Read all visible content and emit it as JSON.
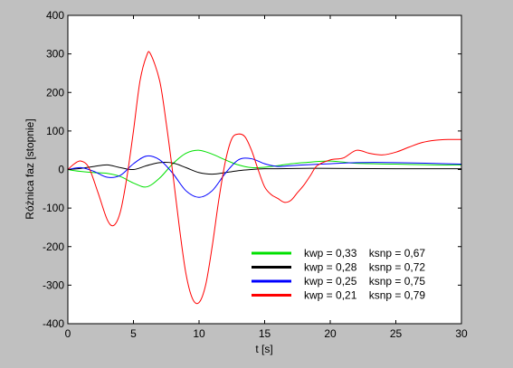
{
  "chart_data": {
    "type": "line",
    "xlabel": "t [s]",
    "ylabel": "Różnica faz [stopnie]",
    "xlim": [
      0,
      30
    ],
    "ylim": [
      -400,
      400
    ],
    "xticks": [
      0,
      5,
      10,
      15,
      20,
      25,
      30
    ],
    "yticks": [
      400,
      300,
      200,
      100,
      0,
      -100,
      -200,
      -300,
      -400
    ],
    "grid": false,
    "legend_position": "bottom-right",
    "series": [
      {
        "name": "kwp = 0,33    ksnp = 0,67",
        "color": "#00e000",
        "x": [
          0,
          0.5,
          1,
          2,
          3,
          4,
          5,
          6,
          7,
          8,
          9,
          10,
          11,
          12,
          13,
          14,
          15,
          16,
          17,
          18,
          20,
          22,
          25,
          28,
          30
        ],
        "y": [
          0,
          -3,
          -5,
          -8,
          -10,
          -18,
          -35,
          -45,
          -22,
          15,
          42,
          50,
          40,
          25,
          12,
          5,
          6,
          10,
          15,
          18,
          22,
          16,
          14,
          12,
          12
        ]
      },
      {
        "name": "kwp = 0,28    ksnp = 0,72",
        "color": "#000000",
        "x": [
          0,
          1,
          2,
          3,
          4,
          5,
          6,
          7,
          8,
          9,
          10,
          11,
          12,
          13,
          14,
          15,
          16,
          18,
          20,
          25,
          30
        ],
        "y": [
          0,
          3,
          8,
          12,
          5,
          0,
          10,
          18,
          17,
          5,
          -8,
          -12,
          -8,
          -3,
          0,
          2,
          2,
          3,
          3,
          2,
          2
        ]
      },
      {
        "name": "kwp = 0,25    ksnp = 0,75",
        "color": "#0000ff",
        "x": [
          0,
          1,
          2,
          3,
          4,
          5,
          6,
          7,
          8,
          9,
          10,
          11,
          12,
          13,
          14,
          15,
          16,
          17,
          18,
          20,
          22,
          25,
          30
        ],
        "y": [
          0,
          5,
          -5,
          -20,
          -15,
          15,
          35,
          25,
          -10,
          -55,
          -72,
          -55,
          -10,
          25,
          28,
          15,
          8,
          10,
          12,
          15,
          18,
          18,
          14
        ]
      },
      {
        "name": "kwp = 0,21    ksnp = 0,79",
        "color": "#ff0000",
        "x": [
          0,
          0.5,
          1,
          1.6,
          2.3,
          3,
          3.5,
          4,
          4.5,
          5,
          5.5,
          6,
          6.3,
          7,
          7.5,
          8,
          8.5,
          9,
          9.5,
          10,
          10.5,
          11,
          11.5,
          12,
          12.5,
          13,
          13.5,
          14,
          14.5,
          15,
          15.5,
          16,
          16.5,
          17,
          17.5,
          18,
          18.5,
          19,
          20,
          21,
          22,
          23,
          24,
          25,
          26,
          27,
          28,
          29,
          30
        ],
        "y": [
          0,
          15,
          22,
          5,
          -60,
          -130,
          -145,
          -110,
          -20,
          100,
          230,
          295,
          300,
          230,
          120,
          -10,
          -150,
          -270,
          -335,
          -345,
          -300,
          -200,
          -80,
          20,
          80,
          92,
          85,
          50,
          0,
          -45,
          -65,
          -75,
          -85,
          -80,
          -60,
          -40,
          -15,
          10,
          25,
          30,
          50,
          42,
          38,
          45,
          58,
          70,
          76,
          78,
          78
        ]
      }
    ]
  }
}
